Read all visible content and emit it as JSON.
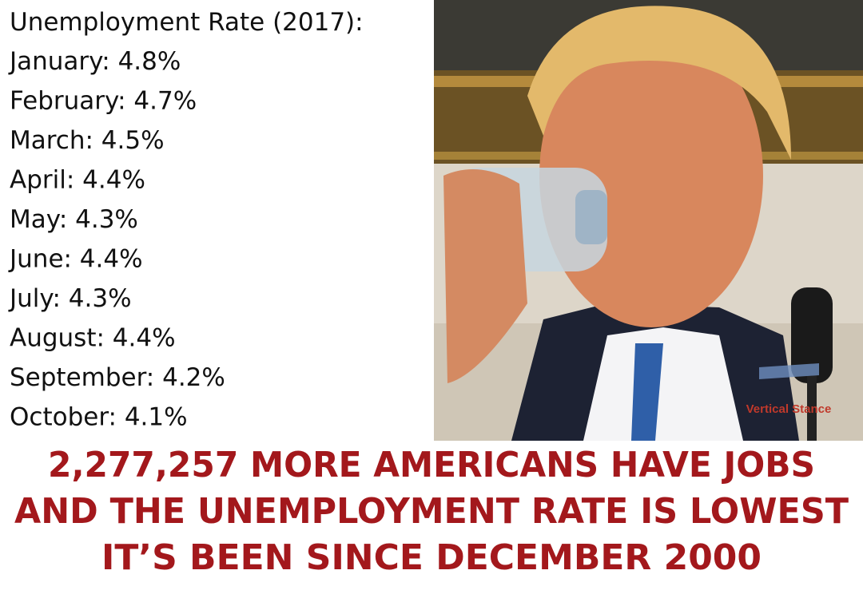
{
  "header": {
    "title": "Unemployment Rate (2017):"
  },
  "list": {
    "items": [
      "January: 4.8%",
      "February: 4.7%",
      "March: 4.5%",
      "April: 4.4%",
      "May: 4.3%",
      "June: 4.4%",
      "July: 4.3%",
      "August: 4.4%",
      "September: 4.2%",
      "October: 4.1%"
    ]
  },
  "photo": {
    "watermark": "Vertical Stance"
  },
  "headline": {
    "lines": [
      "2,277,257 MORE AMERICANS HAVE JOBS",
      "AND THE UNEMPLOYMENT RATE IS LOWEST",
      "IT’S BEEN SINCE DECEMBER 2000"
    ]
  }
}
